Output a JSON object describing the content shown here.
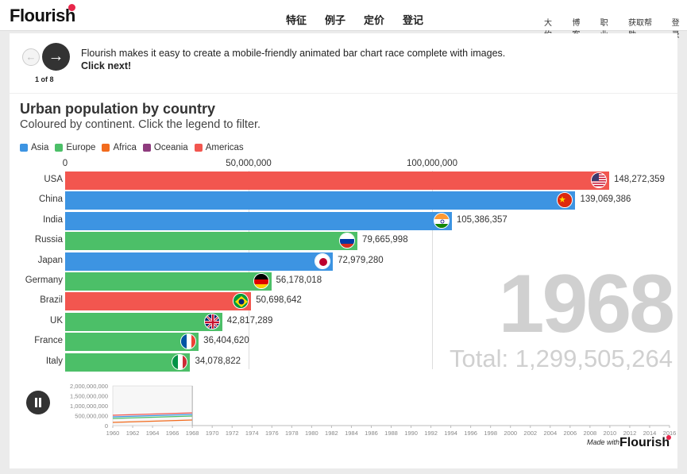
{
  "site": {
    "logo": "Flourish",
    "nav": [
      "特征",
      "例子",
      "定价",
      "登记"
    ],
    "right_nav": [
      "大约",
      "博客",
      "职业",
      "获取帮助",
      "登录"
    ]
  },
  "story": {
    "slide_count": "1 of 8",
    "message": "Flourish makes it easy to create a mobile-friendly animated bar chart race complete with images.",
    "cta": "Click next!"
  },
  "colors": {
    "asia": "#3d94e2",
    "europe": "#4cbf68",
    "africa": "#f26b1d",
    "oceania": "#8e3c7e",
    "americas": "#f2564f"
  },
  "chart_data": {
    "type": "bar",
    "title": "Urban population by country",
    "subtitle": "Coloured by continent. Click the legend to filter.",
    "legend": [
      {
        "name": "Asia",
        "color": "#3d94e2"
      },
      {
        "name": "Europe",
        "color": "#4cbf68"
      },
      {
        "name": "Africa",
        "color": "#f26b1d"
      },
      {
        "name": "Oceania",
        "color": "#8e3c7e"
      },
      {
        "name": "Americas",
        "color": "#f2564f"
      }
    ],
    "axis_ticks": [
      "0",
      "50,000,000",
      "100,000,000"
    ],
    "axis_tick_values": [
      0,
      50000000,
      100000000
    ],
    "xlim": [
      0,
      148272359
    ],
    "categories": [
      "USA",
      "China",
      "India",
      "Russia",
      "Japan",
      "Germany",
      "Brazil",
      "UK",
      "France",
      "Italy"
    ],
    "values": [
      148272359,
      139069386,
      105386357,
      79665998,
      72979280,
      56178018,
      50698642,
      42817289,
      36404620,
      34078822
    ],
    "value_labels": [
      "148,272,359",
      "139,069,386",
      "105,386,357",
      "79,665,998",
      "72,979,280",
      "56,178,018",
      "50,698,642",
      "42,817,289",
      "36,404,620",
      "34,078,822"
    ],
    "continents": [
      "Americas",
      "Asia",
      "Asia",
      "Europe",
      "Asia",
      "Europe",
      "Americas",
      "Europe",
      "Europe",
      "Europe"
    ],
    "flags": [
      "flag-usa",
      "flag-china",
      "flag-india",
      "flag-russia",
      "flag-japan",
      "flag-germany",
      "flag-brazil",
      "flag-uk",
      "flag-france",
      "flag-italy"
    ],
    "year": "1968",
    "total": "Total: 1,299,505,264"
  },
  "timeline": {
    "y_ticks": [
      "2,000,000,000",
      "1,500,000,000",
      "1,000,000,000",
      "500,000,000",
      "0"
    ],
    "x_ticks": [
      "1960",
      "1962",
      "1964",
      "1966",
      "1968",
      "1970",
      "1972",
      "1974",
      "1976",
      "1978",
      "1980",
      "1982",
      "1984",
      "1986",
      "1988",
      "1990",
      "1992",
      "1994",
      "1996",
      "1998",
      "2000",
      "2002",
      "2004",
      "2006",
      "2008",
      "2010",
      "2012",
      "2014",
      "2016"
    ],
    "current_year": 1968
  },
  "footer": {
    "made_with": "Made with",
    "logo": "Flourish"
  }
}
